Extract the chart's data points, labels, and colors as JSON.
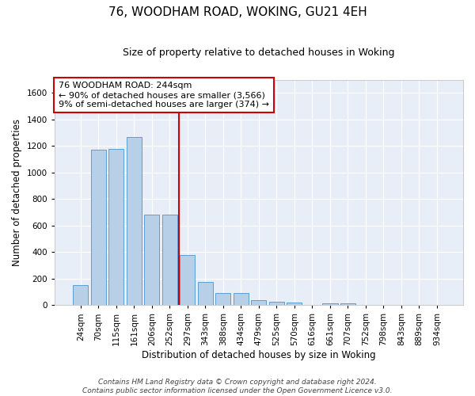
{
  "title1": "76, WOODHAM ROAD, WOKING, GU21 4EH",
  "title2": "Size of property relative to detached houses in Woking",
  "xlabel": "Distribution of detached houses by size in Woking",
  "ylabel": "Number of detached properties",
  "categories": [
    "24sqm",
    "70sqm",
    "115sqm",
    "161sqm",
    "206sqm",
    "252sqm",
    "297sqm",
    "343sqm",
    "388sqm",
    "434sqm",
    "479sqm",
    "525sqm",
    "570sqm",
    "616sqm",
    "661sqm",
    "707sqm",
    "752sqm",
    "798sqm",
    "843sqm",
    "889sqm",
    "934sqm"
  ],
  "values": [
    150,
    1170,
    1175,
    1265,
    680,
    680,
    375,
    175,
    90,
    90,
    35,
    25,
    20,
    0,
    15,
    15,
    0,
    0,
    0,
    0,
    0
  ],
  "bar_color": "#b8cfe8",
  "bar_edge_color": "#5a9fd4",
  "bg_color": "#e8eef8",
  "grid_color": "#ffffff",
  "vline_x": 5.5,
  "vline_color": "#cc0000",
  "annotation_text": "76 WOODHAM ROAD: 244sqm\n← 90% of detached houses are smaller (3,566)\n9% of semi-detached houses are larger (374) →",
  "annotation_box_color": "#ffffff",
  "annotation_box_edge": "#cc0000",
  "ylim": [
    0,
    1700
  ],
  "yticks": [
    0,
    200,
    400,
    600,
    800,
    1000,
    1200,
    1400,
    1600
  ],
  "footer": "Contains HM Land Registry data © Crown copyright and database right 2024.\nContains public sector information licensed under the Open Government Licence v3.0.",
  "title1_fontsize": 11,
  "title2_fontsize": 9,
  "xlabel_fontsize": 8.5,
  "ylabel_fontsize": 8.5,
  "tick_fontsize": 7.5,
  "annotation_fontsize": 8,
  "fig_bg": "#ffffff"
}
